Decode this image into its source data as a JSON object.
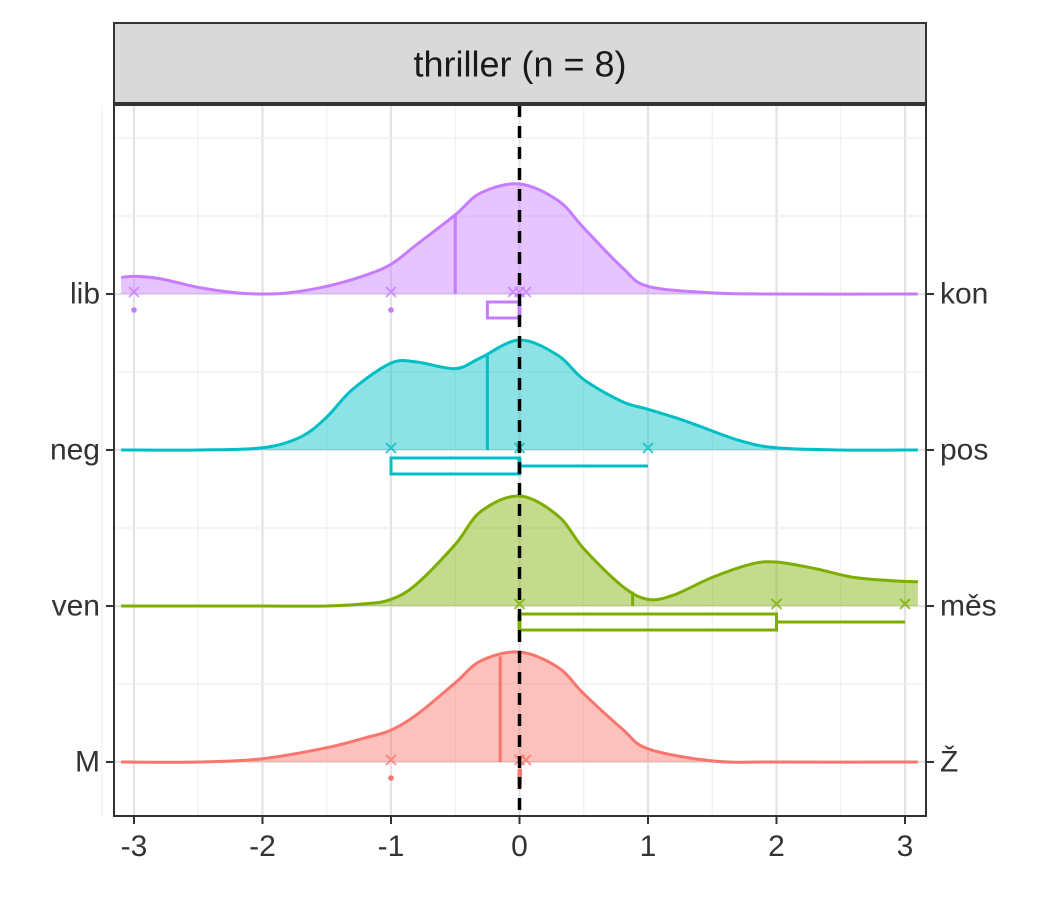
{
  "chart_data": {
    "type": "ridgeline-density-with-boxplots",
    "panel_title": "thriller (n = 8)",
    "xlim": [
      -3.1,
      3.15
    ],
    "x_ticks": [
      -3,
      -2,
      -1,
      0,
      1,
      2,
      3
    ],
    "x_tick_labels": [
      "-3",
      "-2",
      "-1",
      "0",
      "1",
      "2",
      "3"
    ],
    "reference_line_x": 0,
    "grid": true,
    "rows": [
      {
        "left_label": "lib",
        "right_label": "kon",
        "color": "#C77CFF",
        "density_x": [
          -3.1,
          -3.0,
          -2.8,
          -2.5,
          -2.2,
          -2.0,
          -1.8,
          -1.5,
          -1.2,
          -1.0,
          -0.8,
          -0.5,
          -0.3,
          0.0,
          0.3,
          0.5,
          0.8,
          1.0,
          1.5,
          2.0,
          3.1
        ],
        "density_y": [
          0.15,
          0.16,
          0.14,
          0.06,
          0.01,
          0.0,
          0.01,
          0.07,
          0.17,
          0.27,
          0.45,
          0.72,
          0.92,
          1.0,
          0.85,
          0.6,
          0.24,
          0.07,
          0.01,
          0.0,
          0.0
        ],
        "mean": -0.5,
        "points": [
          -3.0,
          -1.0,
          -0.05,
          0.0,
          0.05
        ],
        "box": {
          "q1": -0.25,
          "median": 0.0,
          "q3": 0.0,
          "whisker_low": -0.25,
          "whisker_high": 0.0
        },
        "outliers": [
          -3.0,
          -1.0
        ]
      },
      {
        "left_label": "neg",
        "right_label": "pos",
        "color": "#00BFC4",
        "density_x": [
          -3.1,
          -2.5,
          -2.0,
          -1.7,
          -1.5,
          -1.3,
          -1.0,
          -0.8,
          -0.5,
          -0.3,
          0.0,
          0.3,
          0.5,
          0.8,
          1.0,
          1.3,
          1.7,
          2.0,
          2.5,
          3.1
        ],
        "density_y": [
          0.0,
          0.0,
          0.02,
          0.12,
          0.3,
          0.55,
          0.79,
          0.8,
          0.74,
          0.84,
          1.0,
          0.86,
          0.64,
          0.44,
          0.37,
          0.26,
          0.09,
          0.02,
          0.0,
          0.0
        ],
        "mean": -0.25,
        "points": [
          -1.0,
          0.0,
          1.0
        ],
        "box": {
          "q1": -1.0,
          "median": 0.0,
          "q3": 0.0,
          "whisker_low": -1.0,
          "whisker_high": 1.0
        },
        "outliers": []
      },
      {
        "left_label": "ven",
        "right_label": "měs",
        "color": "#7CAE00",
        "density_x": [
          -3.1,
          -2.0,
          -1.5,
          -1.2,
          -1.0,
          -0.8,
          -0.5,
          -0.3,
          0.0,
          0.3,
          0.5,
          0.8,
          1.0,
          1.2,
          1.5,
          1.8,
          2.0,
          2.3,
          2.6,
          2.9,
          3.1
        ],
        "density_y": [
          0.0,
          0.0,
          0.0,
          0.02,
          0.06,
          0.2,
          0.56,
          0.86,
          1.0,
          0.82,
          0.52,
          0.18,
          0.06,
          0.1,
          0.26,
          0.38,
          0.4,
          0.34,
          0.26,
          0.23,
          0.22
        ],
        "mean": 0.88,
        "points": [
          0.0,
          2.0,
          3.0
        ],
        "box": {
          "q1": 0.0,
          "median": 0.0,
          "q3": 2.0,
          "whisker_low": 0.0,
          "whisker_high": 3.0
        },
        "outliers": []
      },
      {
        "left_label": "M",
        "right_label": "Ž",
        "color": "#F8766D",
        "density_x": [
          -3.1,
          -2.5,
          -2.0,
          -1.5,
          -1.2,
          -1.0,
          -0.8,
          -0.5,
          -0.3,
          0.0,
          0.3,
          0.5,
          0.8,
          1.0,
          1.5,
          2.0,
          3.1
        ],
        "density_y": [
          0.0,
          0.0,
          0.03,
          0.13,
          0.22,
          0.29,
          0.43,
          0.72,
          0.92,
          1.0,
          0.86,
          0.62,
          0.3,
          0.12,
          0.01,
          0.0,
          0.0
        ],
        "mean": -0.15,
        "points": [
          -1.0,
          0.0,
          0.05
        ],
        "box": {
          "q1": 0.0,
          "median": 0.0,
          "q3": 0.0,
          "whisker_low": 0.0,
          "whisker_high": 0.0
        },
        "outliers": [
          -1.0
        ]
      }
    ]
  }
}
